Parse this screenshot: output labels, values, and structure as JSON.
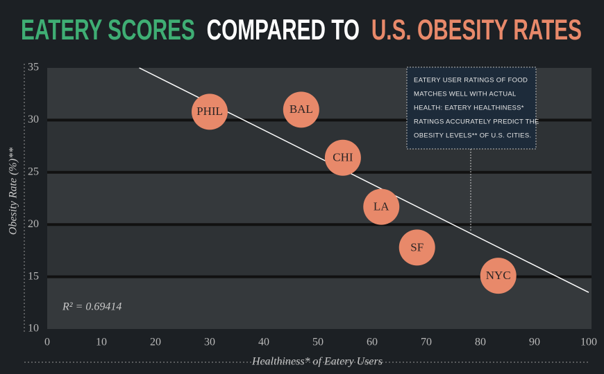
{
  "chart_data": {
    "type": "scatter",
    "title": [
      "EATERY SCORES",
      "COMPARED TO",
      "U.S. OBESITY RATES"
    ],
    "title_colors": [
      "#3fae74",
      "#ffffff",
      "#e8896a"
    ],
    "x_label": "Healthiness* of Eatery Users",
    "y_label": "Obesity Rate (%)**",
    "labels": [
      "PHIL",
      "BAL",
      "CHI",
      "LA",
      "SF",
      "NYC"
    ],
    "x": [
      30.0,
      46.9,
      54.6,
      61.7,
      68.3,
      83.3
    ],
    "y": [
      30.8,
      31.0,
      26.4,
      21.7,
      17.8,
      15.1
    ],
    "color": "#e8896a",
    "trend_line": {
      "x": [
        17,
        100
      ],
      "y": [
        35,
        13.5
      ]
    },
    "r_squared_label": "R² = 0.69414",
    "annotation": [
      "EATERY USER RATINGS OF FOOD",
      "MATCHES WELL WITH ACTUAL",
      "HEALTH: EATERY HEALTHINESS*",
      "RATINGS ACCURATELY PREDICT THE",
      "OBESITY LEVELS** OF U.S. CITIES."
    ],
    "xlim": [
      0,
      100
    ],
    "xticks": [
      0,
      10,
      20,
      30,
      40,
      50,
      60,
      70,
      80,
      90,
      100
    ],
    "ylim": [
      10,
      35
    ],
    "yticks": [
      10,
      15,
      20,
      25,
      30,
      35
    ],
    "grid": true
  }
}
